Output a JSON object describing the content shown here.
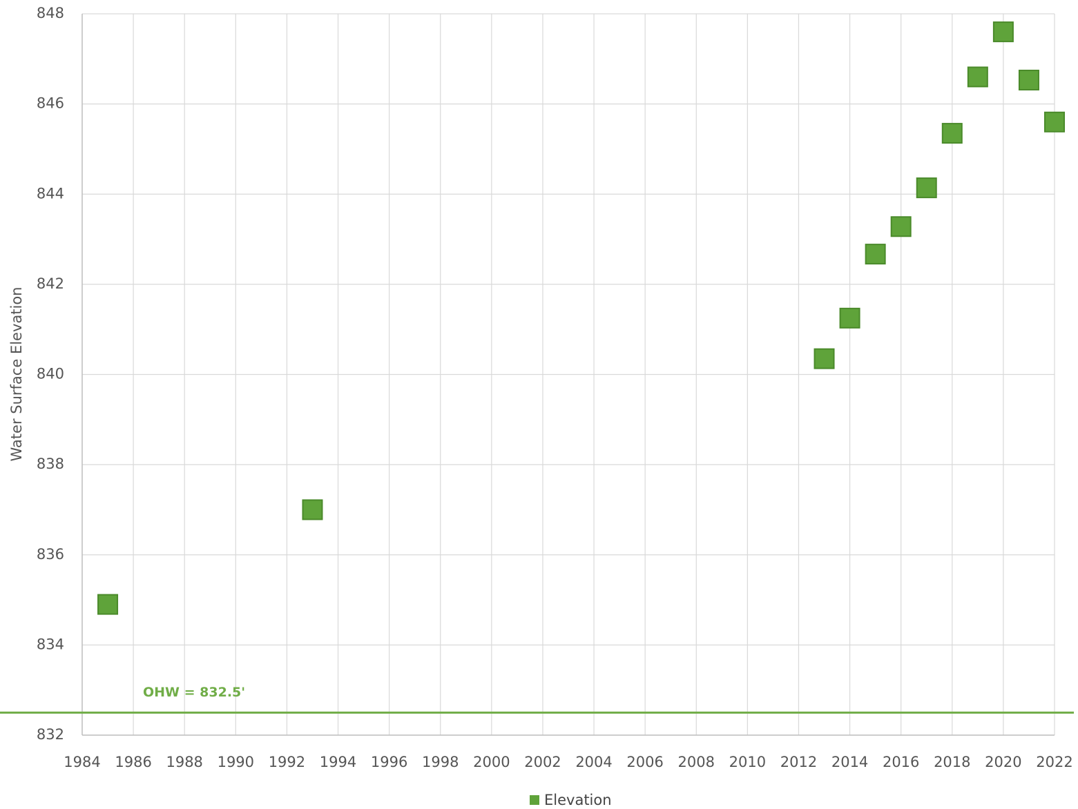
{
  "chart_data": {
    "type": "scatter",
    "y_label": "Water Surface Elevation",
    "x": [
      1985,
      1993,
      2013,
      2014,
      2015,
      2016,
      2017,
      2018,
      2019,
      2020,
      2021,
      2022
    ],
    "series": [
      {
        "name": "Elevation",
        "color": "#5fa33a",
        "values": [
          834.9,
          837.0,
          840.35,
          841.25,
          842.67,
          843.28,
          844.14,
          845.35,
          846.6,
          847.6,
          846.53,
          845.6
        ]
      }
    ],
    "xlim": [
      1984,
      2022
    ],
    "xticks": [
      1984,
      1986,
      1988,
      1990,
      1992,
      1994,
      1996,
      1998,
      2000,
      2002,
      2004,
      2006,
      2008,
      2010,
      2012,
      2014,
      2016,
      2018,
      2020,
      2022
    ],
    "ylim": [
      832,
      848
    ],
    "yticks": [
      832,
      834,
      836,
      838,
      840,
      842,
      844,
      846,
      848
    ],
    "grid": true,
    "legend": "bottom",
    "reference_line": 832.5,
    "reference_color": "#70ad47",
    "annotation": "OHW = 832.5'"
  }
}
